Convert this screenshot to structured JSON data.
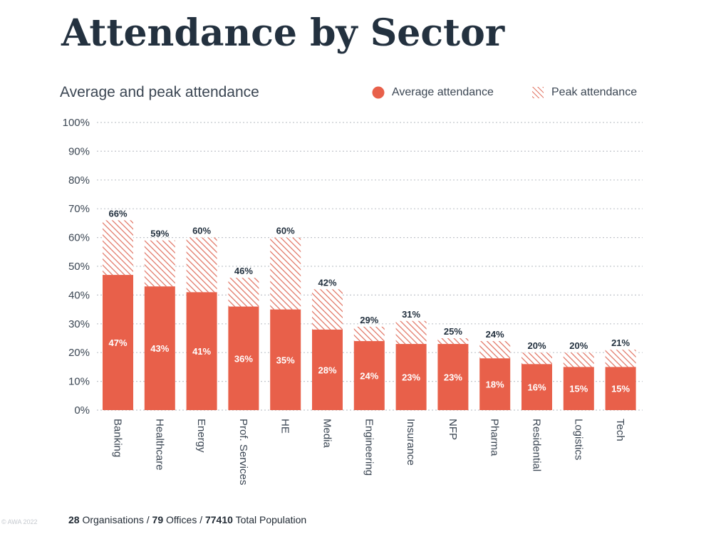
{
  "title": "Attendance by Sector",
  "footer": {
    "org_count": "28",
    "org_label": "Organisations /",
    "office_count": "79",
    "office_label": "Offices /",
    "population_count": "77410",
    "population_label": "Total Population"
  },
  "copyright": "© AWA 2022",
  "colors": {
    "average": "#e8604a",
    "peak_hatch": "#e0705f",
    "title": "#23313f",
    "grid": "#c2c6cc"
  },
  "chart_data": {
    "type": "bar",
    "subtitle": "Average and peak attendance",
    "legend": [
      {
        "name": "Average attendance",
        "marker": "circle"
      },
      {
        "name": "Peak attendance",
        "marker": "hatched"
      }
    ],
    "legend_placement": "top-right",
    "categories": [
      "Banking",
      "Healthcare",
      "Energy",
      "Prof. Services",
      "HE",
      "Media",
      "Engineering",
      "Insurance",
      "NFP",
      "Pharma",
      "Residential",
      "Logistics",
      "Tech"
    ],
    "series": [
      {
        "name": "Average attendance",
        "values": [
          47,
          43,
          41,
          36,
          35,
          28,
          24,
          23,
          23,
          18,
          16,
          15,
          15
        ]
      },
      {
        "name": "Peak attendance",
        "values": [
          66,
          59,
          60,
          46,
          60,
          42,
          29,
          31,
          25,
          24,
          20,
          20,
          21
        ]
      }
    ],
    "avg_labels": [
      "47%",
      "43%",
      "41%",
      "36%",
      "35%",
      "28%",
      "24%",
      "23%",
      "23%",
      "18%",
      "16%",
      "15%",
      "15%"
    ],
    "peak_labels": [
      "66%",
      "59%",
      "60%",
      "46%",
      "60%",
      "42%",
      "29%",
      "31%",
      "25%",
      "24%",
      "20%",
      "20%",
      "21%"
    ],
    "yticks": [
      "0%",
      "10%",
      "20%",
      "30%",
      "40%",
      "50%",
      "60%",
      "70%",
      "80%",
      "90%",
      "100%"
    ],
    "ylim": [
      0,
      100
    ],
    "grid": true
  }
}
